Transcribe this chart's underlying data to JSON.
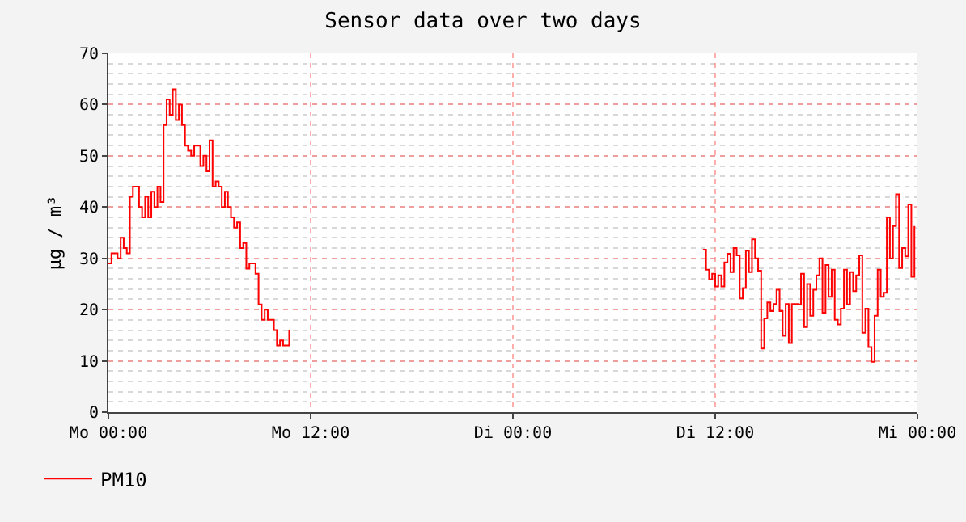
{
  "chart_data": {
    "type": "step",
    "title": "Sensor data over two days",
    "ylabel": "µg / m³",
    "categories": [
      "Mo 00:00",
      null,
      null,
      null,
      null,
      null,
      null,
      null,
      null,
      null,
      null,
      null,
      null,
      null,
      null,
      null,
      null,
      null,
      null,
      null,
      null,
      null,
      null,
      null,
      null,
      null,
      null,
      null,
      null,
      null,
      null,
      null,
      null,
      null,
      null,
      null,
      null,
      null,
      null,
      null,
      null,
      null,
      null,
      null,
      null,
      null,
      null,
      null,
      null,
      null,
      null,
      null,
      null,
      null,
      null,
      null,
      null,
      null,
      null,
      null,
      null,
      null,
      null,
      null,
      null,
      null,
      "Mo 12:00",
      null,
      null,
      null,
      null,
      null,
      null,
      null,
      null,
      null,
      null,
      null,
      null,
      null,
      null,
      null,
      null,
      null,
      null,
      null,
      null,
      null,
      null,
      null,
      null,
      null,
      null,
      null,
      null,
      null,
      null,
      null,
      null,
      null,
      null,
      null,
      null,
      null,
      null,
      null,
      null,
      null,
      null,
      null,
      null,
      null,
      null,
      null,
      null,
      null,
      null,
      null,
      null,
      null,
      null,
      null,
      null,
      null,
      null,
      null,
      null,
      null,
      null,
      null,
      null,
      null,
      "Di 00:00",
      null,
      null,
      null,
      null,
      null,
      null,
      null,
      null,
      null,
      null,
      null,
      null,
      null,
      null,
      null,
      null,
      null,
      null,
      null,
      null,
      null,
      null,
      null,
      null,
      null,
      null,
      null,
      null,
      null,
      null,
      null,
      null,
      null,
      null,
      null,
      null,
      null,
      null,
      null,
      null,
      null,
      null,
      null,
      null,
      null,
      null,
      null,
      null,
      null,
      null,
      null,
      null,
      null,
      null,
      null,
      null,
      null,
      null,
      null,
      null,
      null,
      null,
      null,
      null,
      null,
      "Di 12:00",
      null,
      null,
      null,
      null,
      null,
      null,
      null,
      null,
      null,
      null,
      null,
      null,
      null,
      null,
      null,
      null,
      null,
      null,
      null,
      null,
      null,
      null,
      null,
      null,
      null,
      null,
      null,
      null,
      null,
      null,
      null,
      null,
      null,
      null,
      null,
      null,
      null,
      null,
      null,
      null,
      null,
      null,
      null,
      null,
      null,
      null,
      null,
      null,
      null,
      null,
      null,
      null,
      null,
      null,
      null,
      null,
      null,
      null,
      null,
      null,
      null,
      null,
      null,
      null,
      null,
      "Mi 00:00"
    ],
    "series": [
      {
        "name": "PM10",
        "color": "#ff0000",
        "values": [
          29,
          31,
          31,
          30,
          34,
          32,
          31,
          42,
          44,
          44,
          40,
          38,
          42,
          38,
          43,
          40,
          44,
          41,
          56,
          61,
          58,
          63,
          57,
          60,
          56,
          52,
          51,
          50,
          52,
          52,
          48,
          50,
          47,
          53,
          44,
          45,
          44,
          40,
          43,
          40,
          38,
          36,
          37,
          32,
          33,
          28,
          29,
          29,
          27,
          21,
          18,
          20,
          18,
          18,
          16,
          13,
          14,
          13,
          13,
          16,
          null,
          null,
          null,
          null,
          null,
          null,
          null,
          null,
          null,
          null,
          null,
          null,
          null,
          null,
          null,
          null,
          null,
          null,
          null,
          null,
          null,
          null,
          null,
          null,
          null,
          null,
          null,
          null,
          null,
          null,
          null,
          null,
          null,
          null,
          null,
          null,
          null,
          null,
          null,
          null,
          null,
          null,
          null,
          null,
          null,
          null,
          null,
          null,
          null,
          null,
          null,
          null,
          null,
          null,
          null,
          null,
          null,
          null,
          null,
          null,
          null,
          null,
          null,
          null,
          null,
          null,
          null,
          null,
          null,
          null,
          null,
          null,
          null,
          null,
          null,
          null,
          null,
          null,
          null,
          null,
          null,
          null,
          null,
          null,
          null,
          null,
          null,
          null,
          null,
          null,
          null,
          null,
          null,
          null,
          null,
          null,
          null,
          null,
          null,
          null,
          null,
          null,
          null,
          null,
          null,
          null,
          null,
          null,
          null,
          null,
          null,
          null,
          null,
          null,
          null,
          null,
          null,
          null,
          null,
          null,
          null,
          null,
          null,
          null,
          null,
          null,
          null,
          null,
          null,
          null,
          null,
          null,
          null,
          null,
          31.7,
          27.8,
          25.9,
          27,
          24.5,
          26.7,
          24.5,
          29.2,
          30.9,
          27.3,
          32,
          30.6,
          22.2,
          24.2,
          31.5,
          27.3,
          33.7,
          30,
          27.6,
          12.4,
          18.3,
          21.4,
          19.7,
          21.1,
          23.9,
          19.7,
          14.9,
          21.1,
          13.5,
          21.1,
          21.1,
          21,
          27,
          16.6,
          25,
          18.8,
          23.9,
          26.7,
          30,
          19.4,
          28.7,
          22.5,
          27.8,
          18,
          17.1,
          20.2,
          27.8,
          21,
          27.3,
          23.6,
          26.7,
          30.6,
          15.5,
          20.2,
          12.7,
          9.8,
          18.8,
          27.8,
          22.5,
          23.3,
          38,
          30,
          36.3,
          42.5,
          28.1,
          32,
          30.4,
          40.5,
          26.4,
          36.3,
          null
        ]
      }
    ],
    "ylim": [
      0,
      70
    ],
    "yticks": [
      0,
      10,
      20,
      30,
      40,
      50,
      60,
      70
    ],
    "grid": true,
    "legend": "bottom left",
    "line_style": "solid",
    "marker": "none"
  }
}
